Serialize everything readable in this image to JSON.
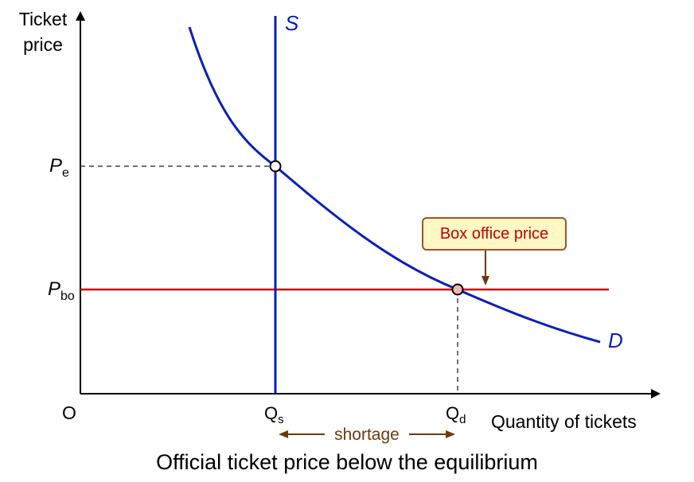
{
  "chart_data": {
    "type": "line",
    "title": "Official ticket price below the equilibrium",
    "xlabel": "Quantity of tickets",
    "ylabel": "Ticket\nprice",
    "origin_label": "O",
    "series": [
      {
        "name": "S",
        "kind": "vertical-line"
      },
      {
        "name": "D",
        "kind": "curve"
      }
    ],
    "price_labels": [
      {
        "base": "P",
        "sub": "e"
      },
      {
        "base": "P",
        "sub": "bo"
      }
    ],
    "quantity_labels": [
      {
        "base": "Q",
        "sub": "s"
      },
      {
        "base": "Q",
        "sub": "d"
      }
    ],
    "annotations": {
      "callout": "Box office price",
      "shortage": "shortage"
    },
    "colors": {
      "supply": "#0a1fb8",
      "demand": "#0a1fb8",
      "price_line": "#cc0000",
      "axis": "#000000",
      "guide": "#444444",
      "shortage_arrow": "#6b3a10",
      "callout_border": "#a0522d",
      "callout_fill": "#fff8c4",
      "callout_text": "#c00000",
      "point_pe_fill": "#ffffff",
      "point_bo_fill": "#f4b6b6"
    }
  }
}
